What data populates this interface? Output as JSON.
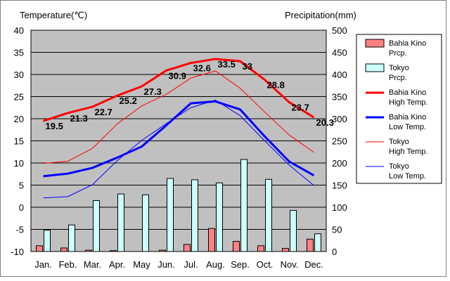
{
  "chart_data": {
    "type": "bar+line",
    "left_axis_title": "Temperature(℃)",
    "right_axis_title": "Precipitation(mm)",
    "categories": [
      "Jan.",
      "Feb.",
      "Mar.",
      "Apr.",
      "May",
      "Jun.",
      "Jul.",
      "Aug.",
      "Sep.",
      "Oct.",
      "Nov.",
      "Dec."
    ],
    "temperature_axis": {
      "min": -10,
      "max": 40,
      "ticks": [
        -10,
        -5,
        0,
        5,
        10,
        15,
        20,
        25,
        30,
        35,
        40
      ]
    },
    "precipitation_axis": {
      "min": 0,
      "max": 500,
      "ticks": [
        0,
        50,
        100,
        150,
        200,
        250,
        300,
        350,
        400,
        450,
        500
      ]
    },
    "grid": true,
    "legend_position": "right",
    "bar_series": [
      {
        "name": "Bahia Kino\nPrcp.",
        "color": "#ff8080",
        "values": [
          13,
          8,
          3,
          2,
          0,
          3,
          16,
          52,
          23,
          13,
          7,
          28
        ]
      },
      {
        "name": "Tokyo\nPrcp.",
        "color": "#ccffff",
        "values": [
          48,
          60,
          115,
          130,
          128,
          165,
          162,
          155,
          208,
          163,
          93,
          40
        ]
      }
    ],
    "line_series": [
      {
        "name": "Bahia Kino\nHigh Temp.",
        "color": "#ff0000",
        "width": "thick",
        "values": [
          19.5,
          21.3,
          22.7,
          25.2,
          27.3,
          30.9,
          32.6,
          33.5,
          33,
          28.8,
          23.7,
          20.3
        ],
        "labels": [
          "19.5",
          "21.3",
          "22.7",
          "25.2",
          "27.3",
          "30.9",
          "32.6",
          "33.5",
          "33",
          "28.8",
          "23.7",
          "20.3"
        ]
      },
      {
        "name": "Bahia Kino\nLow Temp.",
        "color": "#0000ff",
        "width": "thick",
        "values": [
          7,
          7.6,
          8.9,
          11.2,
          13.7,
          18.5,
          23.5,
          23.9,
          22.1,
          16,
          10.3,
          7.2
        ]
      },
      {
        "name": "Tokyo\nHigh Temp.",
        "color": "#ff0000",
        "width": "thin",
        "values": [
          9.9,
          10.4,
          13.3,
          18.8,
          22.9,
          25.5,
          29.2,
          30.8,
          26.9,
          21.5,
          16.3,
          12.4
        ]
      },
      {
        "name": "Tokyo\nLow Temp.",
        "color": "#0000ff",
        "width": "thin",
        "values": [
          2.1,
          2.4,
          5.1,
          10.5,
          15.1,
          18.9,
          22.5,
          24.2,
          20.7,
          15.0,
          9.5,
          4.9
        ]
      }
    ]
  }
}
